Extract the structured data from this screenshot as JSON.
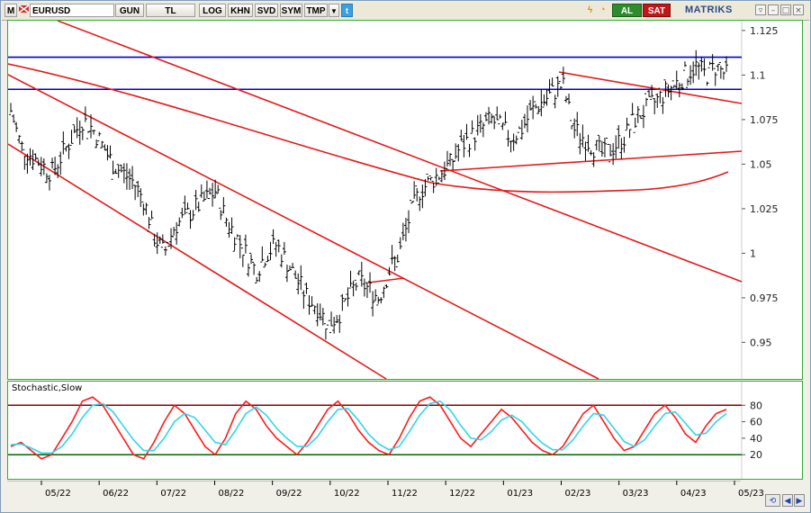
{
  "toolbar": {
    "m_label": "M",
    "symbol": "EURUSD",
    "period": "GUN",
    "currency": "TL",
    "log_label": "LOG",
    "khn_label": "KHN",
    "svd_label": "SVD",
    "sym_label": "SYM",
    "tmp_label": "TMP",
    "al_label": "AL",
    "sat_label": "SAT",
    "logo": "MATRIKS"
  },
  "colors": {
    "price_bars": "#000000",
    "channel": "#e31a1a",
    "horizontal": "#0000cc",
    "stoch_k": "#ff1a1a",
    "stoch_d": "#33d4e8",
    "level_high": "#8b0000",
    "level_low": "#006400",
    "pane_border": "#33aa33"
  },
  "chart_data": [
    {
      "type": "ohlc",
      "symbol": "EURUSD",
      "ylim": [
        0.93,
        1.13
      ],
      "yticks": [
        "1.125",
        "1.1",
        "1.075",
        "1.05",
        "1.025",
        "1",
        "0.975",
        "0.95"
      ],
      "ytick_values": [
        1.125,
        1.1,
        1.075,
        1.05,
        1.025,
        1.0,
        0.975,
        0.95
      ],
      "xticks": [
        "05/22",
        "06/22",
        "07/22",
        "08/22",
        "09/22",
        "10/22",
        "11/22",
        "12/22",
        "01/23",
        "02/23",
        "03/23",
        "04/23",
        "05/23"
      ],
      "close_path": [
        1.08,
        1.06,
        1.055,
        1.05,
        1.045,
        1.055,
        1.065,
        1.075,
        1.07,
        1.06,
        1.05,
        1.045,
        1.04,
        1.03,
        1.01,
        1.0,
        1.015,
        1.02,
        1.025,
        1.03,
        1.035,
        1.02,
        1.01,
        1.0,
        0.99,
        1.0,
        1.005,
        0.995,
        0.985,
        0.975,
        0.97,
        0.96,
        0.965,
        0.975,
        0.985,
        0.98,
        0.975,
        0.99,
        1.0,
        1.02,
        1.035,
        1.04,
        1.045,
        1.05,
        1.06,
        1.065,
        1.07,
        1.075,
        1.07,
        1.065,
        1.07,
        1.08,
        1.085,
        1.09,
        1.095,
        1.07,
        1.065,
        1.06,
        1.055,
        1.06,
        1.065,
        1.075,
        1.08,
        1.085,
        1.09,
        1.095,
        1.1,
        1.105,
        1.1,
        1.105,
        1.1
      ],
      "horizontal_lines": [
        1.11,
        1.092
      ],
      "overlay": "red channel and trend lines"
    },
    {
      "type": "line",
      "title": "Stochastic,Slow",
      "ylim": [
        0,
        100
      ],
      "yticks": [
        "80",
        "60",
        "40",
        "20"
      ],
      "ytick_values": [
        80,
        60,
        40,
        20
      ],
      "levels": [
        80,
        20
      ],
      "series": [
        {
          "values": [
            30,
            35,
            25,
            15,
            20,
            40,
            60,
            85,
            90,
            80,
            60,
            40,
            20,
            15,
            35,
            60,
            80,
            70,
            50,
            30,
            20,
            40,
            70,
            85,
            75,
            55,
            40,
            30,
            20,
            35,
            55,
            75,
            85,
            70,
            50,
            35,
            25,
            20,
            40,
            65,
            85,
            90,
            80,
            60,
            40,
            30,
            45,
            60,
            75,
            65,
            50,
            35,
            25,
            20,
            30,
            50,
            70,
            80,
            60,
            40,
            25,
            30,
            50,
            70,
            80,
            65,
            45,
            35,
            55,
            70,
            75
          ]
        },
        {
          "values": [
            32,
            33,
            28,
            22,
            22,
            30,
            45,
            65,
            80,
            82,
            72,
            55,
            38,
            25,
            25,
            40,
            60,
            70,
            65,
            50,
            35,
            32,
            50,
            70,
            78,
            68,
            52,
            40,
            30,
            30,
            42,
            60,
            75,
            76,
            62,
            45,
            33,
            26,
            30,
            48,
            68,
            82,
            85,
            74,
            56,
            40,
            38,
            48,
            62,
            68,
            60,
            46,
            34,
            26,
            26,
            38,
            55,
            70,
            68,
            52,
            36,
            30,
            38,
            55,
            70,
            72,
            58,
            44,
            46,
            60,
            70
          ]
        }
      ]
    }
  ]
}
